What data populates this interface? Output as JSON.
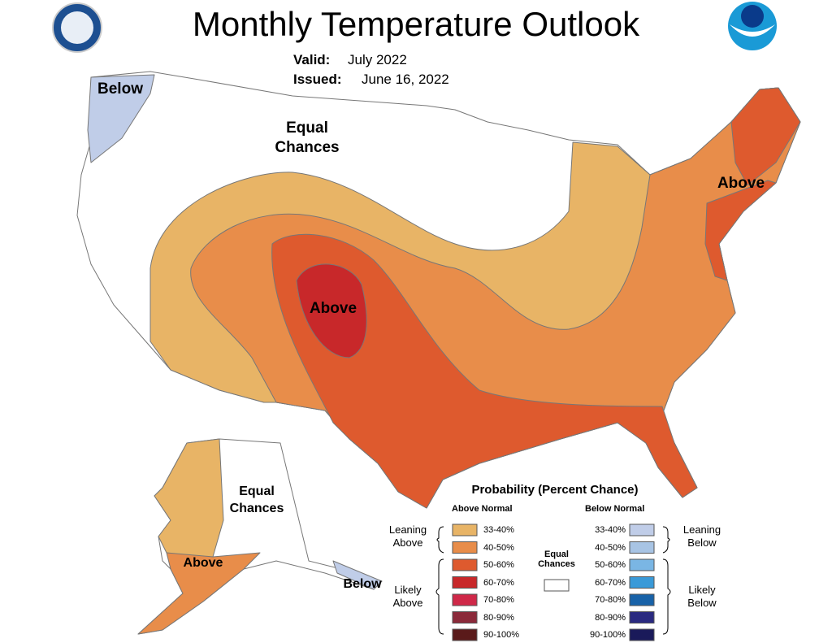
{
  "header": {
    "title": "Monthly Temperature Outlook",
    "valid_label": "Valid:",
    "valid": "July 2022",
    "issued_label": "Issued:",
    "issued": "June 16, 2022"
  },
  "map_labels": [
    "Below",
    "Equal Chances",
    "Above",
    "Above",
    "Equal Chances",
    "Above",
    "Below"
  ],
  "legend": {
    "title": "Probability (Percent Chance)",
    "above_heading": "Above Normal",
    "below_heading": "Below Normal",
    "equal": "Equal Chances",
    "leaning_above": "Leaning Above",
    "likely_above": "Likely Above",
    "leaning_below": "Leaning Below",
    "likely_below": "Likely Below",
    "above": [
      {
        "label": "33-40%",
        "color": "#e8b466"
      },
      {
        "label": "40-50%",
        "color": "#e88d4a"
      },
      {
        "label": "50-60%",
        "color": "#de5a2e"
      },
      {
        "label": "60-70%",
        "color": "#c8282a"
      },
      {
        "label": "70-80%",
        "color": "#cf2848"
      },
      {
        "label": "80-90%",
        "color": "#8b2a3a"
      },
      {
        "label": "90-100%",
        "color": "#5a1a1a"
      }
    ],
    "below": [
      {
        "label": "33-40%",
        "color": "#c0cde8"
      },
      {
        "label": "40-50%",
        "color": "#a8c4e4"
      },
      {
        "label": "50-60%",
        "color": "#7ab6e4"
      },
      {
        "label": "60-70%",
        "color": "#3a9ad8"
      },
      {
        "label": "70-80%",
        "color": "#1862a8"
      },
      {
        "label": "80-90%",
        "color": "#2a2a80"
      },
      {
        "label": "90-100%",
        "color": "#1a1a5a"
      }
    ]
  }
}
